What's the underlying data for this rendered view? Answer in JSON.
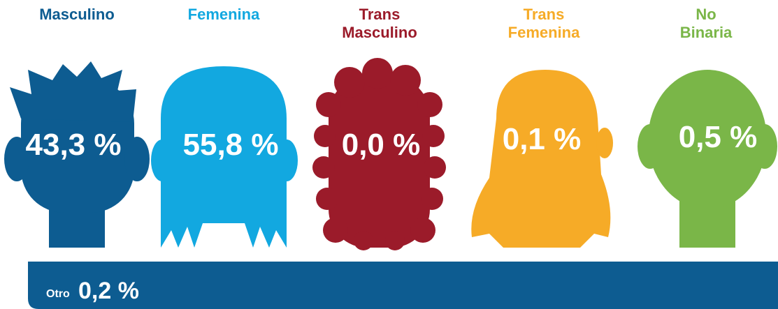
{
  "items": [
    {
      "label": [
        "Masculino"
      ],
      "value": "43,3 %"
    },
    {
      "label": [
        "Femenina"
      ],
      "value": "55,8 %"
    },
    {
      "label": [
        "Trans",
        "Masculino"
      ],
      "value": "0,0 %"
    },
    {
      "label": [
        "Trans",
        "Femenina"
      ],
      "value": "0,1 %"
    },
    {
      "label": [
        "No",
        "Binaria"
      ],
      "value": "0,5 %"
    }
  ],
  "other": {
    "label": "Otro",
    "value": "0,2 %"
  }
}
